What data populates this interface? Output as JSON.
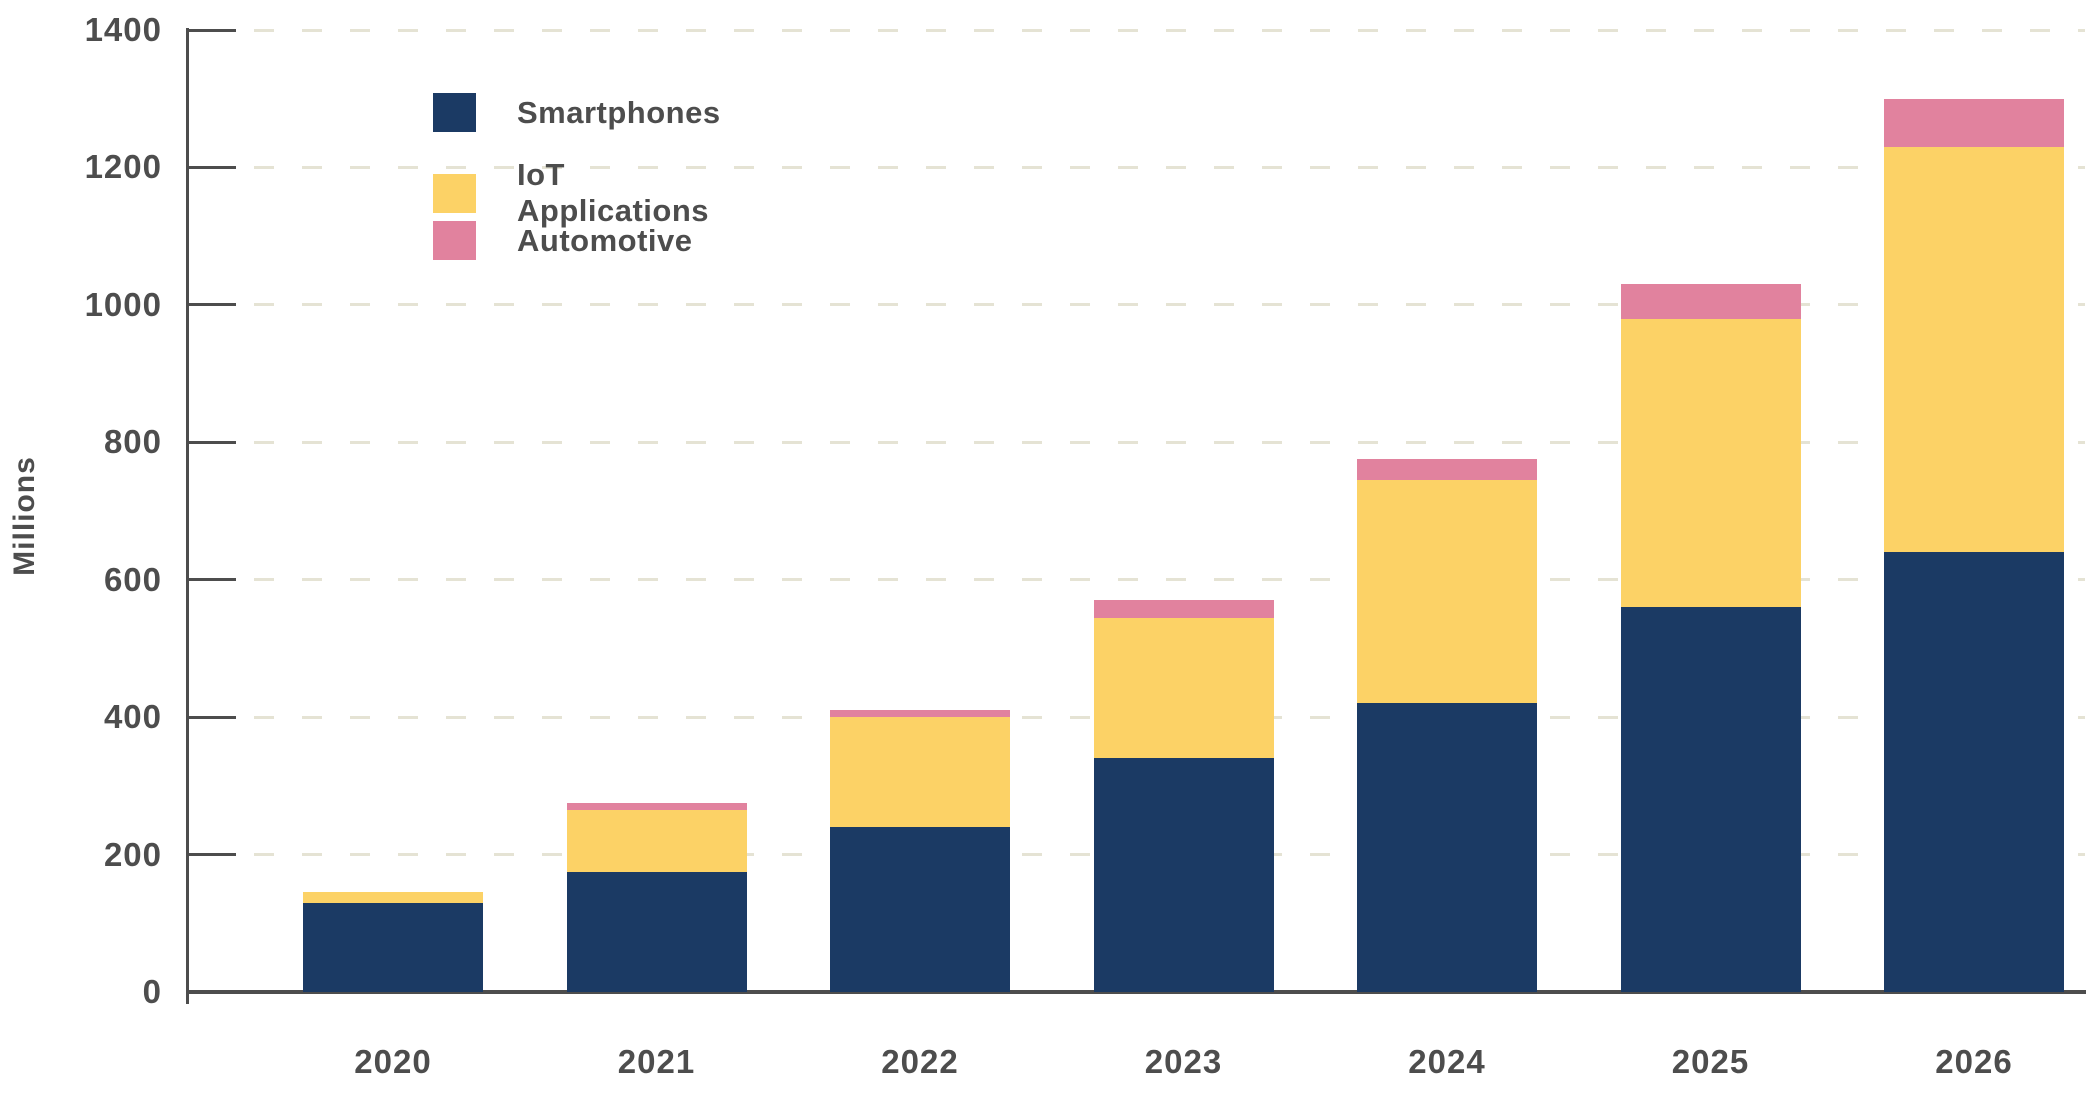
{
  "chart_data": {
    "type": "bar",
    "stacked": true,
    "title": "",
    "xlabel": "",
    "ylabel": "Millions",
    "categories": [
      "2020",
      "2021",
      "2022",
      "2023",
      "2024",
      "2025",
      "2026"
    ],
    "series": [
      {
        "name": "Smartphones",
        "color": "#1B3A64",
        "values": [
          130,
          175,
          240,
          340,
          420,
          560,
          640
        ]
      },
      {
        "name": "IoT Applications",
        "color": "#FCD266",
        "values": [
          15,
          90,
          160,
          205,
          325,
          420,
          590
        ]
      },
      {
        "name": "Automotive",
        "color": "#E1829E",
        "values": [
          0,
          10,
          10,
          25,
          30,
          50,
          70
        ]
      }
    ],
    "totals": [
      145,
      275,
      410,
      570,
      775,
      1030,
      1300
    ],
    "ylim": [
      0,
      1400
    ],
    "yticks": [
      0,
      200,
      400,
      600,
      800,
      1000,
      1200,
      1400
    ],
    "grid": "horizontal dashed",
    "legend_position": "top-left-inside"
  },
  "colors": {
    "axis": "#4D4D4D",
    "text": "#4D4D4D",
    "gridline": "#E5E3D4",
    "background": "#FFFFFF"
  }
}
